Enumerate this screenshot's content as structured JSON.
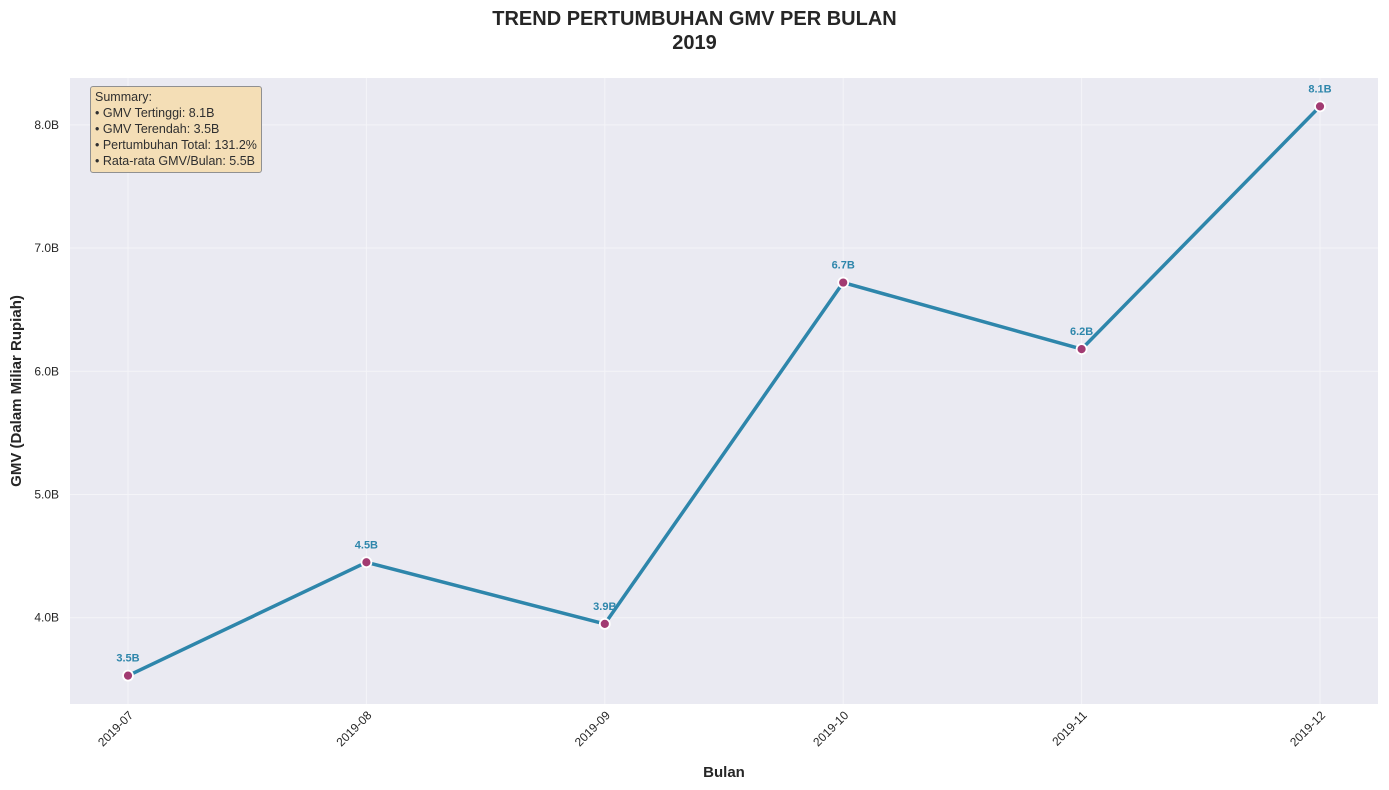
{
  "chart_data": {
    "type": "line",
    "title": "TREND PERTUMBUHAN GMV PER BULAN",
    "subtitle": "2019",
    "xlabel": "Bulan",
    "ylabel": "GMV (Dalam Miliar Rupiah)",
    "categories": [
      "2019-07",
      "2019-08",
      "2019-09",
      "2019-10",
      "2019-11",
      "2019-12"
    ],
    "series": [
      {
        "values": [
          3.53,
          4.45,
          3.95,
          6.72,
          6.18,
          8.15
        ],
        "point_labels": [
          "3.5B",
          "4.5B",
          "3.9B",
          "6.7B",
          "6.2B",
          "8.1B"
        ]
      }
    ],
    "yticks": [
      4.0,
      5.0,
      6.0,
      7.0,
      8.0
    ],
    "ytick_labels": [
      "4.0B",
      "5.0B",
      "6.0B",
      "7.0B",
      "8.0B"
    ],
    "ylim": [
      3.3,
      8.38
    ],
    "grid": true,
    "colors": {
      "line": "#2e86ab",
      "marker_fill": "#a23b72",
      "marker_edge": "#ffffff",
      "plot_background": "#eaeaf2",
      "summary_background": "#f5deb3"
    },
    "summary": {
      "placement": "top-left",
      "heading": "Summary:",
      "lines": [
        "• GMV Tertinggi: 8.1B",
        "• GMV Terendah: 3.5B",
        "• Pertumbuhan Total: 131.2%",
        "• Rata-rata GMV/Bulan: 5.5B"
      ]
    }
  }
}
